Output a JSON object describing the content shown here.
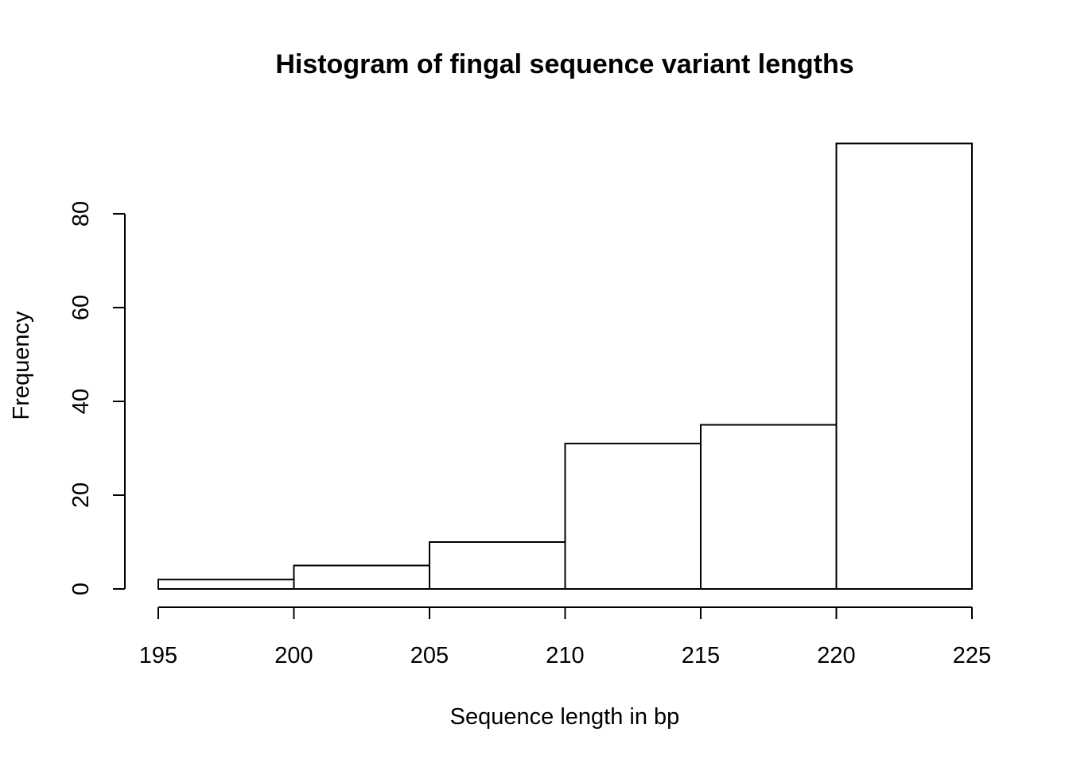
{
  "chart_data": {
    "type": "bar",
    "title": "Histogram of fingal sequence variant lengths",
    "xlabel": "Sequence length in bp",
    "ylabel": "Frequency",
    "bin_edges": [
      195,
      200,
      205,
      210,
      215,
      220,
      225
    ],
    "values": [
      2,
      5,
      10,
      31,
      35,
      95
    ],
    "xlim": [
      195,
      225
    ],
    "ylim": [
      0,
      95
    ],
    "x_ticks": [
      "195",
      "200",
      "205",
      "210",
      "215",
      "220",
      "225"
    ],
    "y_ticks": [
      "0",
      "20",
      "40",
      "60",
      "80"
    ],
    "grid": false,
    "bar_fill": "#ffffff",
    "bar_stroke": "#000000"
  }
}
